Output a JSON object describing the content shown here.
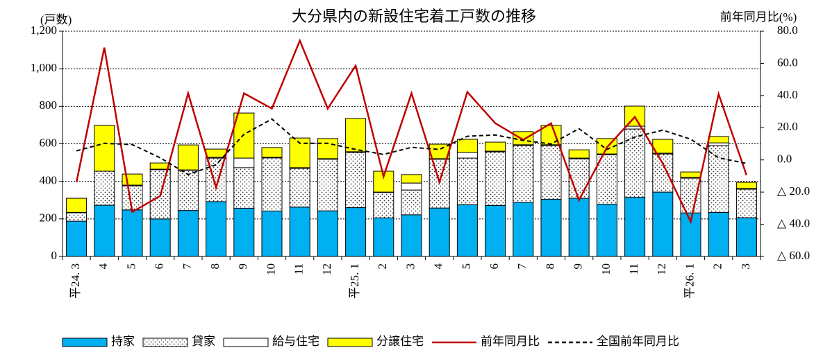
{
  "chart_data": {
    "type": "bar",
    "stacked": true,
    "title": "大分県内の新設住宅着工戸数の推移",
    "ylabel": "(戸数)",
    "y2label": "前年同月比(%)",
    "categories": [
      "平24. 3",
      "4",
      "5",
      "6",
      "7",
      "8",
      "9",
      "10",
      "11",
      "12",
      "平25. 1",
      "2",
      "3",
      "4",
      "5",
      "6",
      "7",
      "8",
      "9",
      "10",
      "11",
      "12",
      "平26. 1",
      "2",
      "3"
    ],
    "ylim": [
      0,
      1200
    ],
    "yticks": [
      0,
      200,
      400,
      600,
      800,
      {
        "value": 1000,
        "label": "1,000"
      },
      {
        "value": 1200,
        "label": "1,200"
      }
    ],
    "y2lim": [
      -60,
      80
    ],
    "y2ticks": [
      {
        "value": -60,
        "label": "△ 60.0"
      },
      {
        "value": -40,
        "label": "△ 40.0"
      },
      {
        "value": -20,
        "label": "△ 20.0"
      },
      {
        "value": 0,
        "label": "0.0"
      },
      {
        "value": 20,
        "label": "20.0"
      },
      {
        "value": 40,
        "label": "40.0"
      },
      {
        "value": 60,
        "label": "60.0"
      },
      {
        "value": 80,
        "label": "80.0"
      }
    ],
    "grid": true,
    "series": [
      {
        "name": "持家",
        "type": "bar",
        "color": "#00b0f0",
        "values": [
          188,
          273,
          248,
          200,
          245,
          292,
          257,
          242,
          263,
          243,
          260,
          205,
          222,
          258,
          275,
          272,
          288,
          305,
          310,
          278,
          315,
          343,
          232,
          235,
          206
        ]
      },
      {
        "name": "貸家",
        "type": "bar",
        "color": "#ffffff",
        "fill_pattern": "dots",
        "values": [
          45,
          181,
          128,
          262,
          214,
          232,
          216,
          283,
          206,
          275,
          294,
          136,
          132,
          260,
          249,
          285,
          303,
          286,
          210,
          264,
          364,
          203,
          185,
          356,
          152
        ]
      },
      {
        "name": "給与住宅",
        "type": "bar",
        "color": "#ffffff",
        "values": [
          2,
          0,
          4,
          3,
          2,
          4,
          51,
          3,
          4,
          3,
          4,
          2,
          37,
          3,
          30,
          4,
          4,
          4,
          4,
          4,
          15,
          4,
          4,
          14,
          4
        ]
      },
      {
        "name": "分譲住宅",
        "type": "bar",
        "color": "#ffff00",
        "values": [
          75,
          244,
          59,
          33,
          133,
          44,
          240,
          52,
          158,
          107,
          177,
          111,
          45,
          77,
          70,
          48,
          70,
          103,
          44,
          82,
          107,
          74,
          29,
          34,
          33
        ]
      },
      {
        "name": "前年同月比",
        "type": "line",
        "axis": "y2",
        "color": "#c00000",
        "line_style": "solid",
        "values": [
          -13.8,
          69.8,
          -32.3,
          -22.4,
          41.4,
          -17.2,
          41.4,
          31.9,
          74.1,
          31.9,
          58.6,
          -10.3,
          41.4,
          -13.8,
          42.2,
          22.8,
          12.5,
          22.8,
          -25.0,
          7.8,
          26.7,
          -2.2,
          -38.4,
          40.9,
          -9.5
        ]
      },
      {
        "name": "全国前年同月比",
        "type": "line",
        "axis": "y2",
        "color": "#000000",
        "line_style": "dashed",
        "values": [
          5.6,
          10.3,
          9.5,
          1.3,
          -9.1,
          -3.0,
          15.9,
          25.4,
          10.3,
          10.3,
          6.5,
          3.4,
          7.8,
          6.5,
          14.7,
          15.5,
          12.1,
          9.9,
          19.4,
          6.5,
          14.2,
          18.5,
          12.9,
          1.3,
          -2.2
        ]
      }
    ]
  }
}
